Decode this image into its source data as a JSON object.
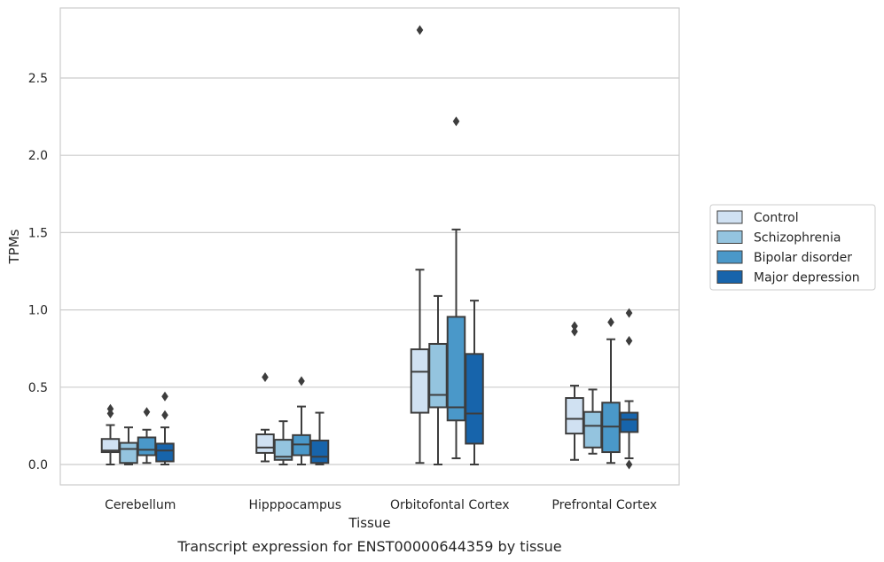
{
  "chart_data": {
    "type": "boxplot",
    "caption": "Transcript expression for ENST00000644359 by tissue",
    "xlabel": "Tissue",
    "ylabel": "TPMs",
    "ylim": [
      -0.14,
      2.95
    ],
    "yticks": [
      0.0,
      0.5,
      1.0,
      1.5,
      2.0,
      2.5
    ],
    "ytick_labels": [
      "0.0",
      "0.5",
      "1.0",
      "1.5",
      "2.0",
      "2.5"
    ],
    "grid": "horizontal",
    "legend_position": "right",
    "categories": [
      "Cerebellum",
      "Hipppocampus",
      "Orbitofontal Cortex",
      "Prefrontal Cortex"
    ],
    "series": [
      {
        "name": "Control",
        "color": "#d0e1f2",
        "boxes": [
          {
            "whisker_low": 0.0,
            "q1": 0.08,
            "median": 0.09,
            "q3": 0.165,
            "whisker_high": 0.255,
            "outliers": [
              0.33,
              0.36
            ]
          },
          {
            "whisker_low": 0.02,
            "q1": 0.075,
            "median": 0.11,
            "q3": 0.195,
            "whisker_high": 0.225,
            "outliers": [
              0.565
            ]
          },
          {
            "whisker_low": 0.01,
            "q1": 0.335,
            "median": 0.6,
            "q3": 0.745,
            "whisker_high": 1.26,
            "outliers": [
              2.81
            ]
          },
          {
            "whisker_low": 0.03,
            "q1": 0.2,
            "median": 0.295,
            "q3": 0.43,
            "whisker_high": 0.51,
            "outliers": [
              0.86,
              0.895
            ]
          }
        ]
      },
      {
        "name": "Schizophrenia",
        "color": "#94c4df",
        "boxes": [
          {
            "whisker_low": 0.0,
            "q1": 0.01,
            "median": 0.1,
            "q3": 0.14,
            "whisker_high": 0.24,
            "outliers": []
          },
          {
            "whisker_low": 0.0,
            "q1": 0.03,
            "median": 0.05,
            "q3": 0.16,
            "whisker_high": 0.28,
            "outliers": []
          },
          {
            "whisker_low": 0.0,
            "q1": 0.37,
            "median": 0.45,
            "q3": 0.78,
            "whisker_high": 1.09,
            "outliers": []
          },
          {
            "whisker_low": 0.07,
            "q1": 0.11,
            "median": 0.25,
            "q3": 0.34,
            "whisker_high": 0.485,
            "outliers": []
          }
        ]
      },
      {
        "name": "Bipolar disorder",
        "color": "#4a98c9",
        "boxes": [
          {
            "whisker_low": 0.01,
            "q1": 0.06,
            "median": 0.095,
            "q3": 0.175,
            "whisker_high": 0.225,
            "outliers": [
              0.34
            ]
          },
          {
            "whisker_low": 0.0,
            "q1": 0.06,
            "median": 0.13,
            "q3": 0.19,
            "whisker_high": 0.375,
            "outliers": [
              0.54
            ]
          },
          {
            "whisker_low": 0.04,
            "q1": 0.285,
            "median": 0.37,
            "q3": 0.955,
            "whisker_high": 1.52,
            "outliers": [
              2.22
            ]
          },
          {
            "whisker_low": 0.01,
            "q1": 0.08,
            "median": 0.245,
            "q3": 0.4,
            "whisker_high": 0.81,
            "outliers": [
              0.92
            ]
          }
        ]
      },
      {
        "name": "Major depression",
        "color": "#1764ab",
        "boxes": [
          {
            "whisker_low": 0.0,
            "q1": 0.02,
            "median": 0.09,
            "q3": 0.135,
            "whisker_high": 0.24,
            "outliers": [
              0.32,
              0.44
            ]
          },
          {
            "whisker_low": 0.0,
            "q1": 0.01,
            "median": 0.05,
            "q3": 0.155,
            "whisker_high": 0.335,
            "outliers": []
          },
          {
            "whisker_low": 0.0,
            "q1": 0.135,
            "median": 0.33,
            "q3": 0.715,
            "whisker_high": 1.06,
            "outliers": []
          },
          {
            "whisker_low": 0.04,
            "q1": 0.21,
            "median": 0.29,
            "q3": 0.335,
            "whisker_high": 0.41,
            "outliers": [
              0.0,
              0.8,
              0.98
            ]
          }
        ]
      }
    ]
  },
  "colors": {
    "grid": "#cccccc",
    "frame": "#cccccc",
    "box_stroke": "#3d3d3d",
    "text": "#262626"
  }
}
